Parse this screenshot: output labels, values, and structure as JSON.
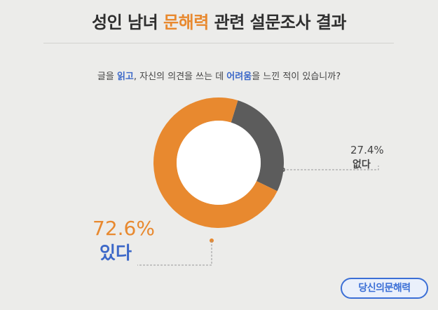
{
  "title": {
    "before": "성인 남녀 ",
    "highlight": "문해력",
    "after": " 관련 설문조사 결과"
  },
  "question": {
    "p1": "글을 ",
    "h1": "읽고",
    "p2": ", 자신의 의견을 쓰는 데 ",
    "h2": "어려움",
    "p3": "을 느낀 적이 있습니까?"
  },
  "chart_data": {
    "type": "pie",
    "donut": true,
    "categories": [
      "있다",
      "없다"
    ],
    "values": [
      72.6,
      27.4
    ],
    "value_labels": [
      "72.6%",
      "27.4%"
    ],
    "colors": [
      "#e8892f",
      "#5c5c5c"
    ],
    "title": "",
    "legend": "none"
  },
  "brand": {
    "name": "당신의문해력"
  }
}
